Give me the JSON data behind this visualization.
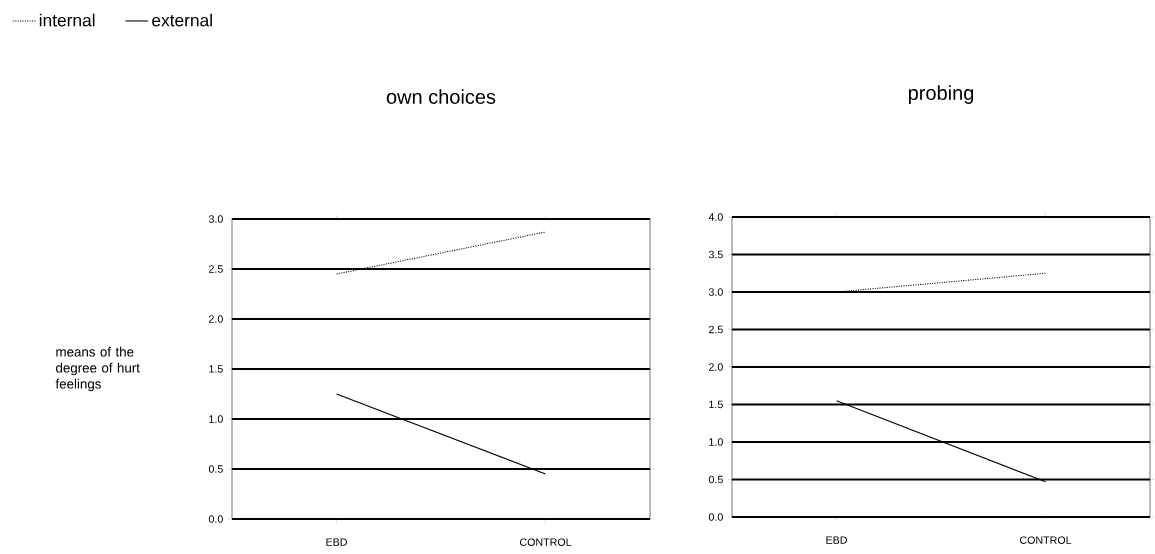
{
  "chart_data": [
    {
      "type": "line",
      "title": "own choices",
      "ylabel": "means of the degree of hurt feelings",
      "categories": [
        "EBD",
        "CONTROL"
      ],
      "series": [
        {
          "name": "internal",
          "color": "#000000",
          "line_style": "dotted",
          "values": [
            2.45,
            2.87
          ]
        },
        {
          "name": "external",
          "color": "#000000",
          "line_style": "solid",
          "values": [
            1.25,
            0.45
          ]
        }
      ],
      "ylim": [
        0,
        3
      ],
      "yticks": [
        {
          "value": 0,
          "label": "0.0"
        },
        {
          "value": 0.5,
          "label": "0.5"
        },
        {
          "value": 1,
          "label": "1.0"
        },
        {
          "value": 1.5,
          "label": "1.5"
        },
        {
          "value": 2,
          "label": "2.0"
        },
        {
          "value": 2.5,
          "label": "2.5"
        },
        {
          "value": 3,
          "label": "3.0"
        }
      ],
      "grid": "y",
      "legend": "top left"
    },
    {
      "type": "line",
      "title": "probing",
      "categories": [
        "EBD",
        "CONTROL"
      ],
      "series": [
        {
          "color": "#000000",
          "line_style": "dotted",
          "values": [
            3.0,
            3.25
          ]
        },
        {
          "color": "#000000",
          "line_style": "solid",
          "values": [
            1.55,
            0.47
          ]
        }
      ],
      "ylim": [
        0,
        4
      ],
      "yticks": [
        {
          "value": 0,
          "label": "0.0"
        },
        {
          "value": 0.5,
          "label": "0.5"
        },
        {
          "value": 1,
          "label": "1.0"
        },
        {
          "value": 1.5,
          "label": "1.5"
        },
        {
          "value": 2,
          "label": "2.0"
        },
        {
          "value": 2.5,
          "label": "2.5"
        },
        {
          "value": 3,
          "label": "3.0"
        },
        {
          "value": 3.5,
          "label": "3.5"
        },
        {
          "value": 4,
          "label": "4.0"
        }
      ],
      "grid": "y",
      "legend": false
    }
  ]
}
